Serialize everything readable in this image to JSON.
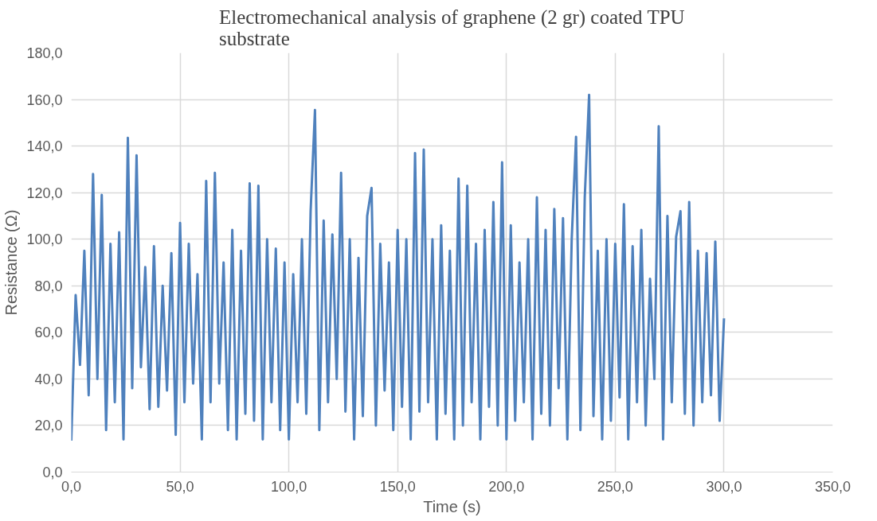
{
  "chart_data": {
    "type": "line",
    "title": "Electromechanical analysis of graphene (2 gr) coated TPU substrate",
    "xlabel": "Time (s)",
    "ylabel": "Resistance (Ω)",
    "xlim": [
      0,
      350
    ],
    "ylim": [
      0,
      180
    ],
    "xticks": [
      {
        "value": 0,
        "label": "0,0"
      },
      {
        "value": 50,
        "label": "50,0"
      },
      {
        "value": 100,
        "label": "100,0"
      },
      {
        "value": 150,
        "label": "150,0"
      },
      {
        "value": 200,
        "label": "200,0"
      },
      {
        "value": 250,
        "label": "250,0"
      },
      {
        "value": 300,
        "label": "300,0"
      },
      {
        "value": 350,
        "label": "350,0"
      }
    ],
    "yticks": [
      {
        "value": 0,
        "label": "0,0"
      },
      {
        "value": 20,
        "label": "20,0"
      },
      {
        "value": 40,
        "label": "40,0"
      },
      {
        "value": 60,
        "label": "60,0"
      },
      {
        "value": 80,
        "label": "80,0"
      },
      {
        "value": 100,
        "label": "100,0"
      },
      {
        "value": 120,
        "label": "120,0"
      },
      {
        "value": 140,
        "label": "140,0"
      },
      {
        "value": 160,
        "label": "160,0"
      },
      {
        "value": 180,
        "label": "180,0"
      }
    ],
    "grid": true,
    "marker": "none",
    "line_style": "solid",
    "x": [
      0,
      2,
      4,
      6,
      8,
      10,
      12,
      14,
      16,
      18,
      20,
      22,
      24,
      26,
      28,
      30,
      32,
      34,
      36,
      38,
      40,
      42,
      44,
      46,
      48,
      50,
      52,
      54,
      56,
      58,
      60,
      62,
      64,
      66,
      68,
      70,
      72,
      74,
      76,
      78,
      80,
      82,
      84,
      86,
      88,
      90,
      92,
      94,
      96,
      98,
      100,
      102,
      104,
      106,
      108,
      110,
      112,
      114,
      116,
      118,
      120,
      122,
      124,
      126,
      128,
      130,
      132,
      134,
      136,
      138,
      140,
      142,
      144,
      146,
      148,
      150,
      152,
      154,
      156,
      158,
      160,
      162,
      164,
      166,
      168,
      170,
      172,
      174,
      176,
      178,
      180,
      182,
      184,
      186,
      188,
      190,
      192,
      194,
      196,
      198,
      200,
      202,
      204,
      206,
      208,
      210,
      212,
      214,
      216,
      218,
      220,
      222,
      224,
      226,
      228,
      230,
      232,
      234,
      236,
      238,
      240,
      242,
      244,
      246,
      248,
      250,
      252,
      254,
      256,
      258,
      260,
      262,
      264,
      266,
      268,
      270,
      272,
      274,
      276,
      278,
      280,
      282,
      284,
      286,
      288,
      290,
      292,
      294,
      296,
      298,
      300
    ],
    "series": [
      {
        "color": "#4f81bd",
        "values": [
          13.5,
          76,
          46,
          95,
          33,
          128,
          40,
          119,
          18,
          98,
          30,
          103,
          14,
          143.5,
          36,
          136,
          45,
          88,
          27,
          97,
          28,
          80,
          35,
          94,
          16,
          107,
          30,
          98,
          38,
          85,
          14,
          125,
          30,
          128.5,
          38,
          90,
          18,
          104,
          14,
          95,
          25,
          124,
          22,
          123,
          14,
          100,
          30,
          96,
          18,
          90,
          14,
          85,
          30,
          100,
          25,
          112,
          155.5,
          18,
          108,
          30,
          102,
          40,
          128.5,
          26,
          100,
          14,
          92,
          24,
          110,
          122,
          20,
          98,
          35,
          90,
          18,
          104,
          28,
          100,
          14,
          137,
          26,
          138.5,
          30,
          100,
          14,
          106,
          25,
          95,
          14,
          126,
          20,
          123,
          30,
          98,
          14,
          104,
          28,
          116,
          20,
          133,
          14,
          106,
          22,
          90,
          30,
          100,
          14,
          118,
          25,
          104,
          20,
          113,
          36,
          109,
          14,
          100,
          144,
          18,
          118,
          162,
          24,
          95,
          14,
          100,
          22,
          98,
          32,
          115,
          14,
          97,
          30,
          104,
          20,
          83,
          40,
          148.5,
          14,
          110,
          30,
          101,
          112,
          25,
          116,
          20,
          95,
          30,
          94,
          33,
          99,
          22,
          66
        ]
      }
    ]
  }
}
